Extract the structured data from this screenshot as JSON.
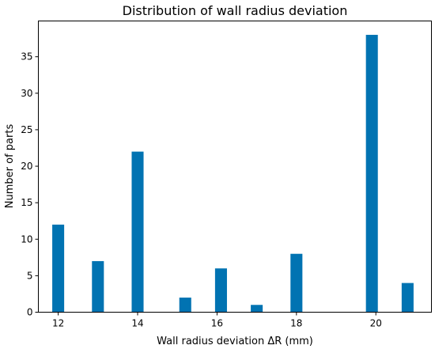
{
  "chart_data": {
    "type": "bar",
    "title": "Distribution of wall radius deviation",
    "xlabel": "Wall radius deviation ΔR (mm)",
    "ylabel": "Number of parts",
    "x": [
      12.0,
      13.0,
      14.0,
      15.2,
      16.1,
      17.0,
      18.0,
      19.9,
      20.8
    ],
    "values": [
      12,
      7,
      22,
      2,
      6,
      1,
      8,
      38,
      4
    ],
    "bar_width": 0.3,
    "xlim": [
      11.5,
      21.4
    ],
    "ylim": [
      0,
      39.9
    ],
    "xticks": [
      12,
      14,
      16,
      18,
      20
    ],
    "yticks": [
      0,
      5,
      10,
      15,
      20,
      25,
      30,
      35
    ],
    "colors": {
      "bar": "#0173b2"
    },
    "grid": false,
    "legend": "none"
  }
}
